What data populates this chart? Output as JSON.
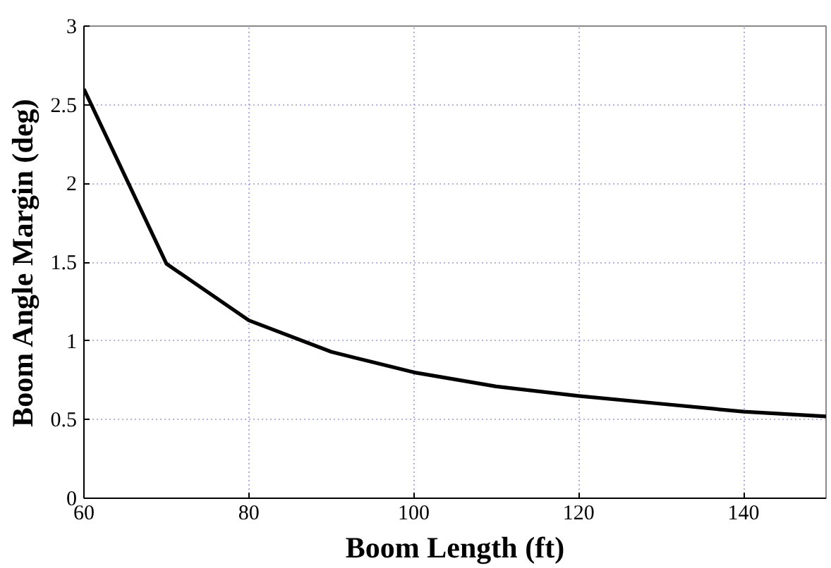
{
  "chart_data": {
    "type": "line",
    "xlabel": "Boom Length (ft)",
    "ylabel": "Boom Angle Margin (deg)",
    "x": [
      60,
      70,
      80,
      90,
      100,
      110,
      120,
      130,
      140,
      150
    ],
    "series": [
      {
        "color": "#000000",
        "values": [
          2.6,
          1.49,
          1.13,
          0.93,
          0.8,
          0.71,
          0.65,
          0.6,
          0.55,
          0.52
        ]
      }
    ],
    "xlim": [
      60,
      150
    ],
    "ylim": [
      0,
      3
    ],
    "xticks": [
      60,
      80,
      100,
      120,
      140
    ],
    "yticks": [
      0,
      {
        "value": 0.5,
        "label": "0.5"
      },
      1,
      {
        "value": 1.5,
        "label": "1.5"
      },
      2,
      {
        "value": 2.5,
        "label": "2.5"
      },
      3
    ],
    "grid": true
  }
}
